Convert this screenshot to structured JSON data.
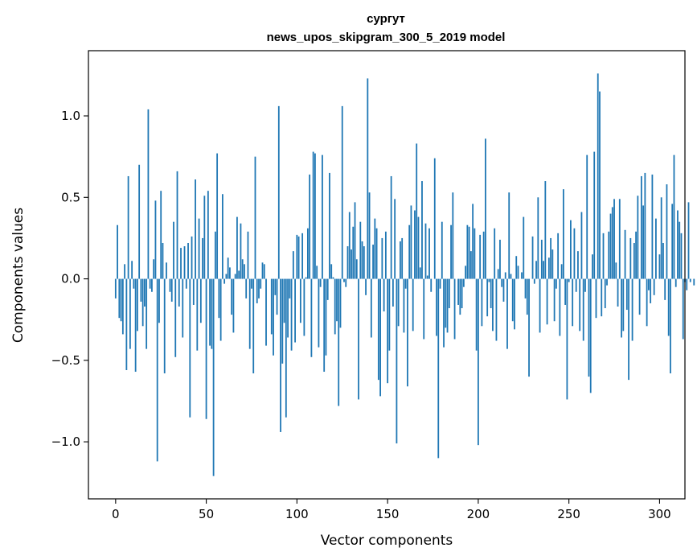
{
  "chart_data": {
    "type": "bar",
    "title_line1": "сургут",
    "title_line2": "news_upos_skipgram_300_5_2019 model",
    "xlabel": "Vector components",
    "ylabel": "Components values",
    "xlim": [
      -15,
      314
    ],
    "ylim": [
      -1.35,
      1.4
    ],
    "x_ticks": [
      0,
      50,
      100,
      150,
      200,
      250,
      300
    ],
    "y_ticks": [
      -1.0,
      -0.5,
      0.0,
      0.5,
      1.0
    ],
    "y_tick_labels": [
      "−1.0",
      "−0.5",
      "0.0",
      "0.5",
      "1.0"
    ],
    "x_tick_labels": [
      "0",
      "50",
      "100",
      "150",
      "200",
      "250",
      "300"
    ],
    "bar_color": "#1f77b4",
    "grid": false,
    "values": [
      -0.12,
      0.33,
      -0.24,
      -0.26,
      -0.34,
      0.09,
      -0.56,
      0.63,
      -0.43,
      0.11,
      -0.06,
      -0.57,
      -0.32,
      0.7,
      -0.14,
      -0.29,
      -0.17,
      -0.43,
      1.04,
      -0.06,
      -0.08,
      0.12,
      0.48,
      -1.12,
      -0.27,
      0.54,
      0.22,
      -0.58,
      0.1,
      0.0,
      -0.08,
      -0.14,
      0.35,
      -0.48,
      0.66,
      -0.17,
      0.19,
      -0.36,
      0.2,
      -0.06,
      0.22,
      -0.85,
      0.26,
      -0.16,
      0.61,
      -0.44,
      0.37,
      -0.27,
      0.25,
      0.51,
      -0.86,
      0.54,
      -0.41,
      -0.43,
      -1.21,
      0.29,
      0.77,
      -0.24,
      -0.38,
      0.52,
      -0.03,
      0.03,
      0.13,
      0.07,
      -0.22,
      -0.33,
      0.03,
      0.38,
      0.05,
      0.34,
      0.12,
      0.09,
      -0.12,
      0.29,
      -0.43,
      -0.06,
      -0.58,
      0.75,
      -0.15,
      -0.12,
      -0.06,
      0.1,
      0.09,
      -0.41,
      0.0,
      0.0,
      -0.34,
      -0.47,
      -0.1,
      -0.22,
      1.06,
      -0.94,
      -0.52,
      -0.27,
      -0.85,
      -0.36,
      -0.12,
      -0.44,
      0.17,
      -0.39,
      0.27,
      0.26,
      -0.27,
      0.28,
      -0.35,
      0.01,
      0.31,
      0.64,
      -0.48,
      0.78,
      0.77,
      0.08,
      -0.42,
      -0.05,
      0.76,
      -0.57,
      -0.47,
      -0.13,
      0.65,
      0.09,
      0.01,
      -0.34,
      -0.26,
      -0.78,
      -0.3,
      1.06,
      -0.02,
      -0.05,
      0.2,
      0.41,
      0.18,
      0.32,
      0.47,
      0.12,
      -0.74,
      0.35,
      0.23,
      0.2,
      -0.1,
      1.23,
      0.53,
      -0.36,
      0.21,
      0.37,
      0.31,
      -0.62,
      -0.72,
      0.25,
      -0.2,
      0.29,
      -0.64,
      -0.44,
      0.63,
      -0.17,
      0.49,
      -1.01,
      -0.29,
      0.23,
      0.25,
      -0.33,
      -0.06,
      -0.66,
      0.33,
      0.45,
      -0.32,
      0.42,
      0.83,
      0.38,
      0.07,
      0.6,
      -0.37,
      0.34,
      0.02,
      0.31,
      -0.08,
      0.0,
      0.74,
      -0.35,
      -1.1,
      -0.06,
      0.35,
      -0.42,
      -0.3,
      -0.33,
      -0.18,
      0.33,
      0.53,
      -0.37,
      0.0,
      -0.16,
      -0.22,
      -0.18,
      -0.05,
      0.08,
      0.33,
      0.32,
      0.17,
      0.46,
      0.31,
      -0.44,
      -1.02,
      0.27,
      -0.29,
      0.29,
      0.86,
      -0.23,
      -0.02,
      -0.18,
      -0.32,
      0.31,
      -0.38,
      0.06,
      0.24,
      -0.05,
      -0.14,
      0.04,
      -0.43,
      0.53,
      0.03,
      -0.26,
      -0.31,
      0.14,
      0.08,
      0.0,
      0.04,
      0.38,
      -0.12,
      -0.22,
      -0.6,
      0.0,
      0.26,
      -0.03,
      0.11,
      0.5,
      -0.33,
      0.24,
      0.11,
      0.6,
      -0.28,
      0.13,
      0.25,
      0.18,
      -0.26,
      -0.06,
      0.28,
      -0.35,
      0.09,
      0.55,
      -0.16,
      -0.74,
      -0.02,
      0.36,
      -0.29,
      0.31,
      -0.08,
      0.17,
      -0.32,
      0.41,
      -0.38,
      -0.08,
      0.76,
      -0.6,
      -0.7,
      0.15,
      0.78,
      -0.24,
      1.26,
      1.15,
      -0.23,
      0.28,
      -0.18,
      -0.04,
      0.29,
      0.4,
      0.44,
      0.49,
      0.1,
      -0.17,
      0.49,
      -0.36,
      -0.32,
      0.3,
      -0.19,
      -0.62,
      0.25,
      -0.38,
      0.22,
      0.29,
      0.51,
      -0.22,
      0.63,
      0.45,
      0.65,
      -0.29,
      -0.07,
      -0.15,
      0.64,
      -0.1,
      0.37,
      0.0,
      0.15,
      0.5,
      0.22,
      -0.13,
      0.58,
      -0.35,
      -0.58,
      0.46,
      0.76,
      -0.05,
      0.42,
      0.35,
      0.28,
      -0.37,
      -0.02,
      -0.07,
      0.47,
      -0.02,
      0.0,
      -0.04
    ]
  }
}
